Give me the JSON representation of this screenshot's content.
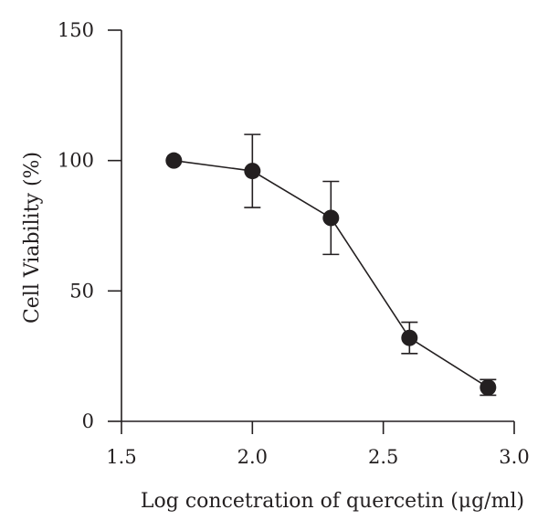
{
  "chart_data": {
    "type": "line",
    "title": "",
    "xlabel": "Log concetration of quercetin (μg/ml)",
    "ylabel": "Cell Viability (%)",
    "xlim": [
      1.5,
      3.0
    ],
    "ylim": [
      0,
      150
    ],
    "x_ticks": [
      "1.5",
      "2.0",
      "2.5",
      "3.0"
    ],
    "y_ticks": [
      "0",
      "50",
      "100",
      "150"
    ],
    "grid": false,
    "series": [
      {
        "x": [
          1.7,
          2.0,
          2.3,
          2.6,
          2.9
        ],
        "y": [
          100,
          96,
          78,
          32,
          13
        ],
        "error": [
          0,
          14,
          14,
          6,
          3
        ]
      }
    ],
    "color": "#231f20"
  }
}
